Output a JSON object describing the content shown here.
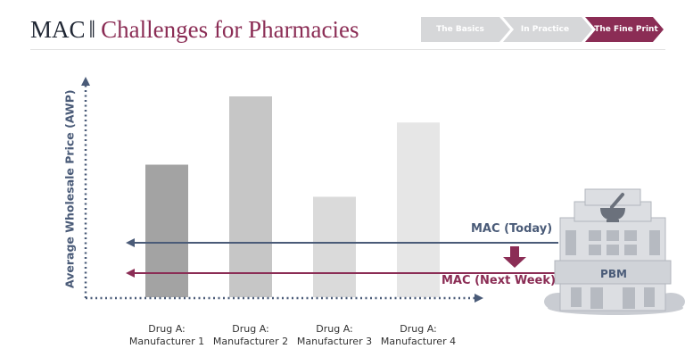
{
  "header": {
    "title_main": "MAC",
    "title_separator": "‖",
    "title_sub": "Challenges for Pharmacies",
    "breadcrumbs": [
      {
        "label": "The Basics",
        "color": "#d6d7d9"
      },
      {
        "label": "In Practice",
        "color": "#d6d7d9"
      },
      {
        "label": "The Fine Print",
        "color": "#8b2d55"
      }
    ]
  },
  "chart_data": {
    "type": "bar",
    "ylabel": "Average Wholesale Price (AWP)",
    "xlabel": "",
    "categories": [
      "Drug A:\nManufacturer 1",
      "Drug A:\nManufacturer 2",
      "Drug A:\nManufacturer 3",
      "Drug A:\nManufacturer 4"
    ],
    "values": [
      66,
      100,
      50,
      87
    ],
    "bar_colors": [
      "#a3a3a3",
      "#c6c6c6",
      "#dadada",
      "#e6e6e6"
    ],
    "ylim": [
      0,
      100
    ],
    "reference_lines": [
      {
        "label": "MAC (Today)",
        "value": 27,
        "color": "#4a5b78"
      },
      {
        "label": "MAC (Next Week)",
        "value": 12,
        "color": "#8b2d55"
      }
    ]
  },
  "building": {
    "label": "PBM",
    "icon": "mortar-and-pestle-icon"
  }
}
